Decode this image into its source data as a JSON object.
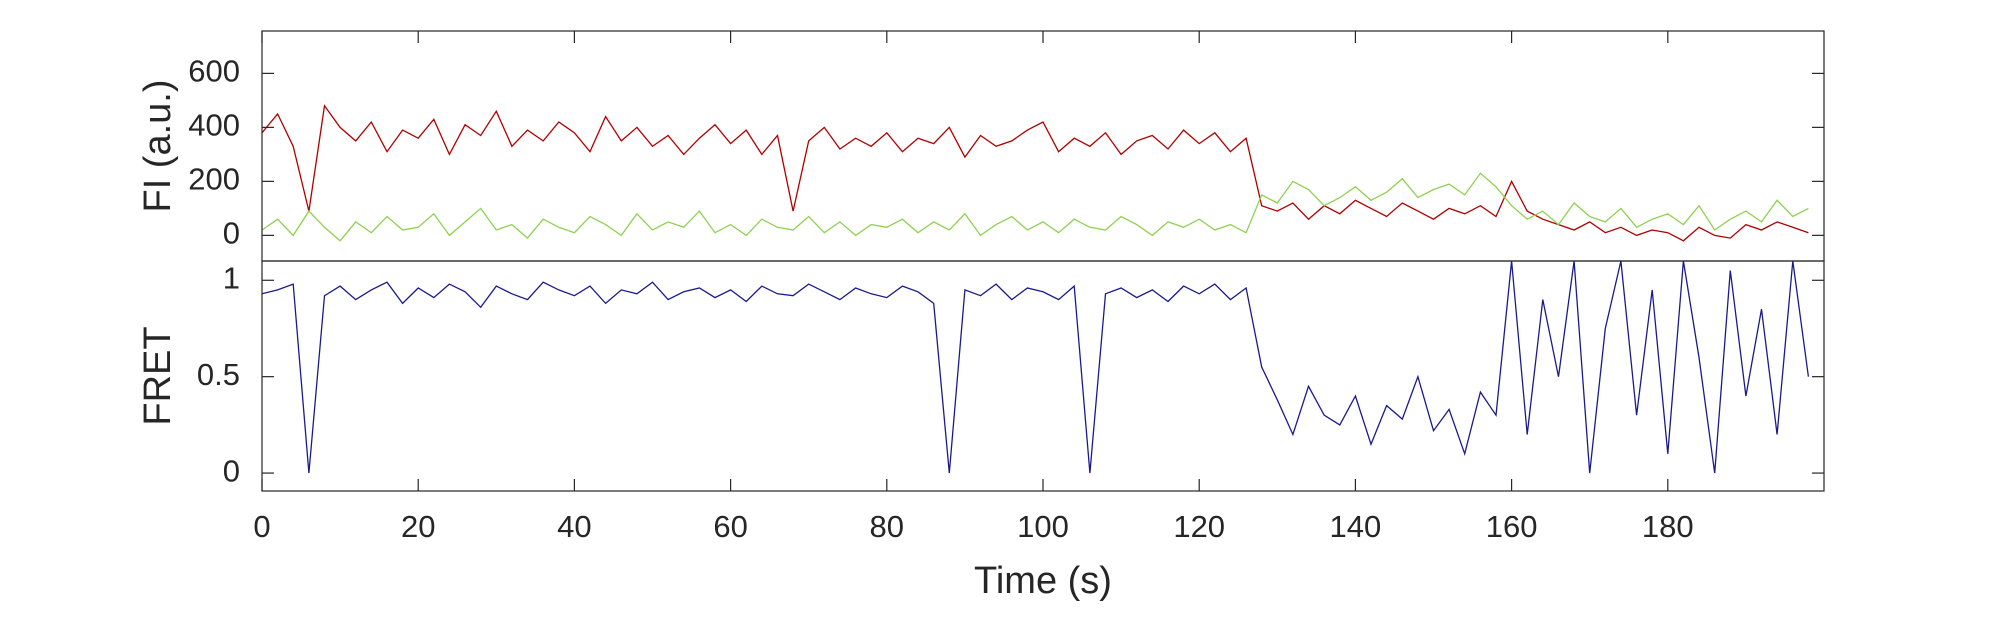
{
  "chart_data": [
    {
      "type": "line",
      "ylabel": "FI (a.u.)",
      "x": [
        0,
        2,
        4,
        6,
        8,
        10,
        12,
        14,
        16,
        18,
        20,
        22,
        24,
        26,
        28,
        30,
        32,
        34,
        36,
        38,
        40,
        42,
        44,
        46,
        48,
        50,
        52,
        54,
        56,
        58,
        60,
        62,
        64,
        66,
        68,
        70,
        72,
        74,
        76,
        78,
        80,
        82,
        84,
        86,
        88,
        90,
        92,
        94,
        96,
        98,
        100,
        102,
        104,
        106,
        108,
        110,
        112,
        114,
        116,
        118,
        120,
        122,
        124,
        126,
        128,
        130,
        132,
        134,
        136,
        138,
        140,
        142,
        144,
        146,
        148,
        150,
        152,
        154,
        156,
        158,
        160,
        162,
        164,
        166,
        168,
        170,
        172,
        174,
        176,
        178,
        180,
        182,
        184,
        186,
        188,
        190,
        192,
        194,
        196,
        198
      ],
      "series": [
        {
          "color": "#b00000",
          "values": [
            380,
            450,
            330,
            90,
            480,
            400,
            350,
            420,
            310,
            390,
            360,
            430,
            300,
            410,
            370,
            460,
            330,
            390,
            350,
            420,
            380,
            310,
            440,
            350,
            400,
            330,
            370,
            300,
            360,
            410,
            340,
            390,
            300,
            370,
            90,
            350,
            400,
            320,
            360,
            330,
            380,
            310,
            360,
            340,
            400,
            290,
            370,
            330,
            350,
            390,
            420,
            310,
            360,
            330,
            380,
            300,
            350,
            370,
            320,
            390,
            340,
            380,
            310,
            360,
            110,
            90,
            120,
            60,
            110,
            80,
            130,
            100,
            70,
            120,
            90,
            60,
            100,
            80,
            110,
            70,
            200,
            90,
            60,
            40,
            20,
            50,
            10,
            30,
            0,
            20,
            10,
            -20,
            30,
            0,
            -10,
            40,
            20,
            50,
            30,
            10
          ]
        },
        {
          "color": "#8fd14f",
          "values": [
            20,
            60,
            0,
            90,
            30,
            -20,
            50,
            10,
            70,
            20,
            30,
            80,
            0,
            50,
            100,
            20,
            40,
            -10,
            60,
            30,
            10,
            70,
            40,
            0,
            80,
            20,
            50,
            30,
            90,
            10,
            40,
            0,
            60,
            30,
            20,
            70,
            10,
            50,
            0,
            40,
            30,
            60,
            10,
            50,
            20,
            80,
            0,
            40,
            70,
            20,
            50,
            10,
            60,
            30,
            20,
            70,
            40,
            0,
            50,
            30,
            60,
            20,
            40,
            10,
            150,
            120,
            200,
            170,
            110,
            140,
            180,
            130,
            160,
            210,
            140,
            170,
            190,
            150,
            230,
            180,
            110,
            60,
            90,
            40,
            120,
            70,
            50,
            100,
            30,
            60,
            80,
            40,
            110,
            20,
            60,
            90,
            50,
            130,
            70,
            100
          ]
        }
      ],
      "xlim": [
        0,
        200
      ],
      "ylim": [
        -95,
        757
      ],
      "yticks": [
        0,
        200,
        400,
        600
      ]
    },
    {
      "type": "line",
      "ylabel": "FRET",
      "xlabel": "Time (s)",
      "x": [
        0,
        2,
        4,
        6,
        8,
        10,
        12,
        14,
        16,
        18,
        20,
        22,
        24,
        26,
        28,
        30,
        32,
        34,
        36,
        38,
        40,
        42,
        44,
        46,
        48,
        50,
        52,
        54,
        56,
        58,
        60,
        62,
        64,
        66,
        68,
        70,
        72,
        74,
        76,
        78,
        80,
        82,
        84,
        86,
        88,
        90,
        92,
        94,
        96,
        98,
        100,
        102,
        104,
        106,
        108,
        110,
        112,
        114,
        116,
        118,
        120,
        122,
        124,
        126,
        128,
        130,
        132,
        134,
        136,
        138,
        140,
        142,
        144,
        146,
        148,
        150,
        152,
        154,
        156,
        158,
        160,
        162,
        164,
        166,
        168,
        170,
        172,
        174,
        176,
        178,
        180,
        182,
        184,
        186,
        188,
        190,
        192,
        194,
        196,
        198
      ],
      "series": [
        {
          "color": "#1a1a8c",
          "values": [
            0.93,
            0.95,
            0.98,
            0,
            0.92,
            0.97,
            0.9,
            0.95,
            0.99,
            0.88,
            0.96,
            0.91,
            0.98,
            0.94,
            0.86,
            0.97,
            0.93,
            0.9,
            0.99,
            0.95,
            0.92,
            0.97,
            0.88,
            0.95,
            0.93,
            0.99,
            0.9,
            0.94,
            0.96,
            0.91,
            0.95,
            0.89,
            0.97,
            0.93,
            0.92,
            0.98,
            0.94,
            0.9,
            0.96,
            0.93,
            0.91,
            0.97,
            0.94,
            0.88,
            0,
            0.95,
            0.92,
            0.98,
            0.9,
            0.96,
            0.94,
            0.9,
            0.97,
            0,
            0.93,
            0.96,
            0.91,
            0.95,
            0.89,
            0.97,
            0.93,
            0.98,
            0.9,
            0.96,
            0.55,
            0.38,
            0.2,
            0.45,
            0.3,
            0.25,
            0.4,
            0.15,
            0.35,
            0.28,
            0.5,
            0.22,
            0.33,
            0.1,
            0.42,
            0.3,
            1.1,
            0.2,
            0.9,
            0.5,
            1.1,
            0,
            0.75,
            1.1,
            0.3,
            0.95,
            0.1,
            1.1,
            0.6,
            0,
            1.05,
            0.4,
            0.85,
            0.2,
            1.1,
            0.5
          ]
        }
      ],
      "xlim": [
        0,
        200
      ],
      "ylim": [
        -0.093,
        1.1
      ],
      "yticks": [
        0,
        0.5,
        1
      ],
      "xticks": [
        0,
        20,
        40,
        60,
        80,
        100,
        120,
        140,
        160,
        180
      ]
    }
  ]
}
